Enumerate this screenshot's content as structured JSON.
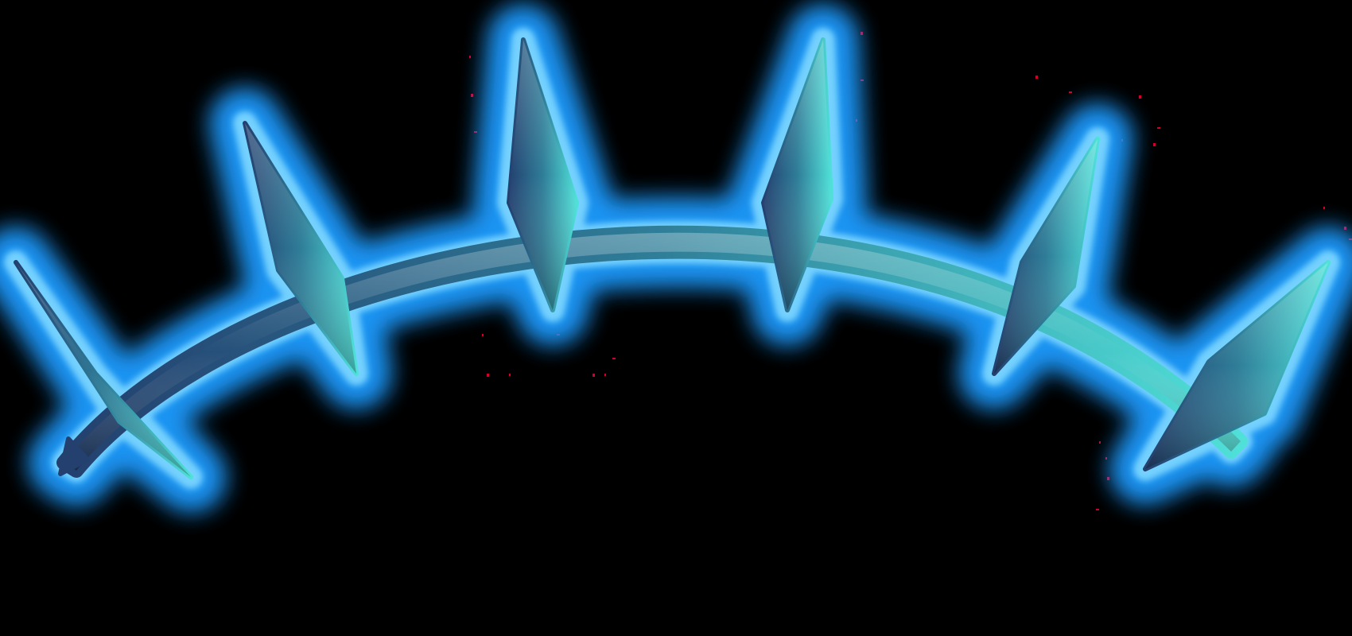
{
  "scene": {
    "background_color": "#000000",
    "asset": "spiked-arc-crown",
    "glow_color": "#1a9bff",
    "glow_rim_color": "#7fd8ff",
    "stray_pixel_color": "#d0002a",
    "spike_count": 6,
    "gradient": {
      "start_color": "#23406f",
      "mid_color": "#2f7d98",
      "end_color": "#4fe0d8"
    }
  }
}
